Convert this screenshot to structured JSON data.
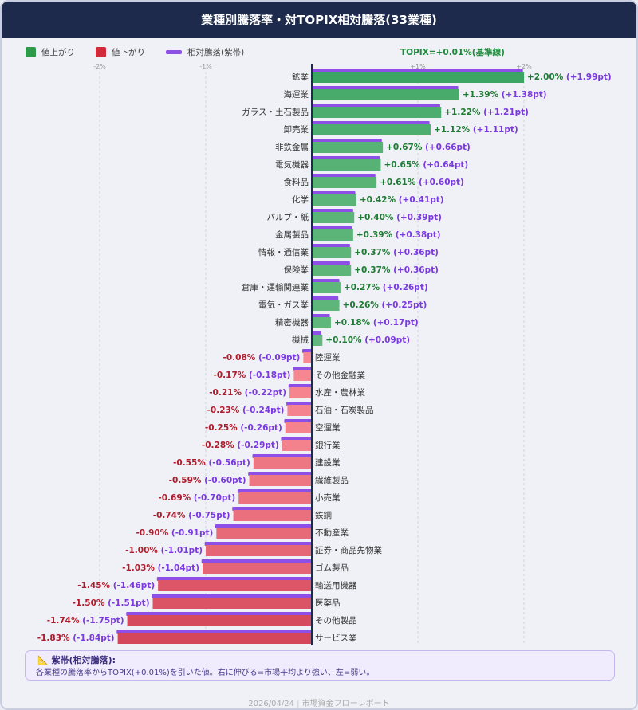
{
  "title": "業種別騰落率・対TOPIX相対騰落(33業種)",
  "legend": {
    "up": "値上がり",
    "down": "値下がり",
    "relative": "相対騰落(紫帯)"
  },
  "topix_label": "TOPIX=+0.01%(基準線)",
  "colors": {
    "up": "#2e9a4a",
    "down": "#d22a3a",
    "relative": "#8e4fe6",
    "header": "#1d2a4b"
  },
  "chart_data": {
    "type": "bar",
    "orientation": "horizontal",
    "baseline_label": "TOPIX=+0.01%(基準線)",
    "xlim": [
      -2.0,
      2.0
    ],
    "x_ticks": [
      "-2%",
      "-1%",
      "+1%",
      "+2%"
    ],
    "x_tick_values": [
      -2,
      -1,
      1,
      2
    ],
    "grid": true,
    "legend_position": "top-left",
    "categories": [
      "鉱業",
      "海運業",
      "ガラス・土石製品",
      "卸売業",
      "非鉄金属",
      "電気機器",
      "食料品",
      "化学",
      "パルプ・紙",
      "金属製品",
      "情報・通信業",
      "保険業",
      "倉庫・運輸関連業",
      "電気・ガス業",
      "精密機器",
      "機械",
      "陸運業",
      "その他金融業",
      "水産・農林業",
      "石油・石炭製品",
      "空運業",
      "銀行業",
      "建設業",
      "繊維製品",
      "小売業",
      "鉄鋼",
      "不動産業",
      "証券・商品先物業",
      "ゴム製品",
      "輸送用機器",
      "医薬品",
      "その他製品",
      "サービス業"
    ],
    "series": [
      {
        "name": "騰落率",
        "values": [
          2.0,
          1.39,
          1.22,
          1.12,
          0.67,
          0.65,
          0.61,
          0.42,
          0.4,
          0.39,
          0.37,
          0.37,
          0.27,
          0.26,
          0.18,
          0.1,
          -0.08,
          -0.17,
          -0.21,
          -0.23,
          -0.25,
          -0.28,
          -0.55,
          -0.59,
          -0.69,
          -0.74,
          -0.9,
          -1.0,
          -1.03,
          -1.45,
          -1.5,
          -1.74,
          -1.83
        ]
      },
      {
        "name": "相対騰落",
        "values": [
          1.99,
          1.38,
          1.21,
          1.11,
          0.66,
          0.64,
          0.6,
          0.41,
          0.39,
          0.38,
          0.36,
          0.36,
          0.26,
          0.25,
          0.17,
          0.09,
          -0.09,
          -0.18,
          -0.22,
          -0.24,
          -0.26,
          -0.29,
          -0.56,
          -0.6,
          -0.7,
          -0.75,
          -0.91,
          -1.01,
          -1.04,
          -1.46,
          -1.51,
          -1.75,
          -1.84
        ]
      }
    ]
  },
  "note": {
    "icon": "triangle-ruler-icon",
    "title": "紫帯(相対騰落):",
    "body": "各業種の騰落率からTOPIX(+0.01%)を引いた値。右に伸びる=市場平均より強い、左=弱い。"
  },
  "footer": {
    "date": "2026/04/24",
    "separator": "|",
    "report": "市場資金フローレポート"
  }
}
